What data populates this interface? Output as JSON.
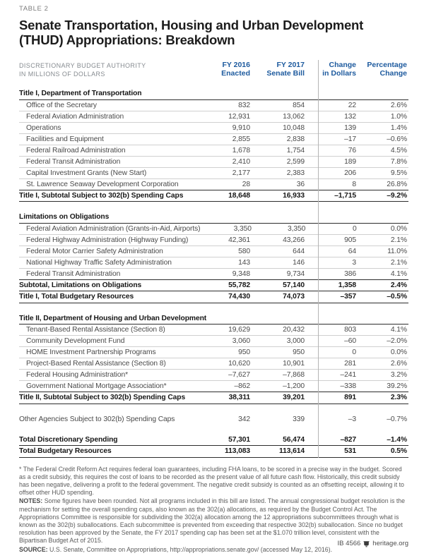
{
  "page": {
    "table_label": "TABLE 2",
    "title": "Senate Transportation, Housing and Urban Development (THUD) Appropriations: Breakdown"
  },
  "colors": {
    "header_blue": "#1d5a9e",
    "dark_rule": "#2d2d2d",
    "light_rule": "#d0d0d0",
    "footnote_gray": "#5b5b5b"
  },
  "table": {
    "axis_label_line1": "DISCRETIONARY BUDGET AUTHORITY",
    "axis_label_line2": "IN MILLIONS OF DOLLARS",
    "columns": [
      {
        "line1": "FY 2016",
        "line2": "Enacted"
      },
      {
        "line1": "FY 2017",
        "line2": "Senate Bill"
      },
      {
        "line1": "Change",
        "line2": "in Dollars"
      },
      {
        "line1": "Percentage",
        "line2": "Change"
      }
    ],
    "rows": [
      {
        "type": "section",
        "label": "Title I, Department of Transportation"
      },
      {
        "type": "data",
        "label": "Office of the Secretary",
        "v": [
          "832",
          "854",
          "22",
          "2.6%"
        ]
      },
      {
        "type": "data",
        "label": "Federal Aviation Administration",
        "v": [
          "12,931",
          "13,062",
          "132",
          "1.0%"
        ]
      },
      {
        "type": "data",
        "label": "Operations",
        "v": [
          "9,910",
          "10,048",
          "139",
          "1.4%"
        ]
      },
      {
        "type": "data",
        "label": "Facilities and Equipment",
        "v": [
          "2,855",
          "2,838",
          "–17",
          "–0.6%"
        ]
      },
      {
        "type": "data",
        "label": "Federal Railroad Administration",
        "v": [
          "1,678",
          "1,754",
          "76",
          "4.5%"
        ]
      },
      {
        "type": "data",
        "label": "Federal Transit Administration",
        "v": [
          "2,410",
          "2,599",
          "189",
          "7.8%"
        ]
      },
      {
        "type": "data",
        "label": "Capital Investment Grants (New Start)",
        "v": [
          "2,177",
          "2,383",
          "206",
          "9.5%"
        ]
      },
      {
        "type": "data",
        "label": "St. Lawrence Seaway Development Corporation",
        "v": [
          "28",
          "36",
          "8",
          "26.8%"
        ]
      },
      {
        "type": "subtotal",
        "label": "Title I, Subtotal Subject to 302(b) Spending Caps",
        "v": [
          "18,648",
          "16,933",
          "–1,715",
          "–9.2%"
        ]
      },
      {
        "type": "gap"
      },
      {
        "type": "section",
        "label": "Limitations on Obligations"
      },
      {
        "type": "data",
        "label": "Federal Aviation Administration (Grants-in-Aid, Airports)",
        "v": [
          "3,350",
          "3,350",
          "0",
          "0.0%"
        ]
      },
      {
        "type": "data",
        "label": "Federal Highway Administration (Highway Funding)",
        "v": [
          "42,361",
          "43,266",
          "905",
          "2.1%"
        ]
      },
      {
        "type": "data",
        "label": "Federal Motor Carrier Safety Administration",
        "v": [
          "580",
          "644",
          "64",
          "11.0%"
        ]
      },
      {
        "type": "data",
        "label": "National Highway Traffic Safety Administration",
        "v": [
          "143",
          "146",
          "3",
          "2.1%"
        ]
      },
      {
        "type": "data",
        "label": "Federal Transit Administration",
        "v": [
          "9,348",
          "9,734",
          "386",
          "4.1%"
        ]
      },
      {
        "type": "subtotal",
        "label": "Subtotal, Limitations on Obligations",
        "v": [
          "55,782",
          "57,140",
          "1,358",
          "2.4%"
        ]
      },
      {
        "type": "subtotal",
        "label": "Title I, Total Budgetary Resources",
        "v": [
          "74,430",
          "74,073",
          "–357",
          "–0.5%"
        ]
      },
      {
        "type": "gap"
      },
      {
        "type": "section",
        "label": "Title II, Department of Housing and Urban Development"
      },
      {
        "type": "data",
        "label": "Tenant-Based Rental Assistance (Section 8)",
        "v": [
          "19,629",
          "20,432",
          "803",
          "4.1%"
        ]
      },
      {
        "type": "data",
        "label": "Community Development Fund",
        "v": [
          "3,060",
          "3,000",
          "–60",
          "–2.0%"
        ]
      },
      {
        "type": "data",
        "label": "HOME Investment Partnership Programs",
        "v": [
          "950",
          "950",
          "0",
          "0.0%"
        ]
      },
      {
        "type": "data",
        "label": "Project-Based Rental Assistance (Section 8)",
        "v": [
          "10,620",
          "10,901",
          "281",
          "2.6%"
        ]
      },
      {
        "type": "data",
        "label": "Federal Housing Administration*",
        "v": [
          "–7,627",
          "–7,868",
          "–241",
          "3.2%"
        ]
      },
      {
        "type": "data",
        "label": "Government National Mortgage Association*",
        "v": [
          "–862",
          "–1,200",
          "–338",
          "39.2%"
        ]
      },
      {
        "type": "subtotal",
        "label": "Title II, Subtotal Subject to 302(b) Spending Caps",
        "v": [
          "38,311",
          "39,201",
          "891",
          "2.3%"
        ]
      },
      {
        "type": "gap"
      },
      {
        "type": "plain",
        "label": "Other Agencies Subject to 302(b) Spending Caps",
        "v": [
          "342",
          "339",
          "–3",
          "–0.7%"
        ]
      },
      {
        "type": "gap"
      },
      {
        "type": "total",
        "label": "Total Discretionary Spending",
        "v": [
          "57,301",
          "56,474",
          "–827",
          "–1.4%"
        ]
      },
      {
        "type": "total",
        "label": "Total Budgetary Resources",
        "v": [
          "113,083",
          "113,614",
          "531",
          "0.5%"
        ]
      }
    ]
  },
  "footnotes": {
    "asterisk": "* The Federal Credit Reform Act requires federal loan guarantees, including FHA loans, to be scored in a precise way in the budget. Scored as a credit subsidy, this requires the cost of loans to be recorded as the present value of all future cash flow. Historically, this credit subsidy has been negative, delivering a profit to the federal government. The negative credit subsidy is counted as an offsetting receipt, allowing it to offset other HUD spending.",
    "notes_label": "NOTES:",
    "notes": "Some figures have been rounded. Not all programs included in this bill are listed. The annual congressional budget resolution is the mechanism for setting the overall spending caps, also known as the 302(a) allocations, as required by the Budget Control Act. The Appropriations Committee is responsible for subdividing the 302(a) allocation among the 12 appropriations subcommittees through what is known as the 302(b) suballocations. Each subcommittee is prevented from exceeding that respective 302(b) suballocation. Since no budget resolution has been approved by the Senate, the FY 2017 spending cap has been set at the $1.070 trillion level, consistent with the Bipartisan Budget Act of 2015.",
    "source_label": "SOURCE:",
    "source": "U.S. Senate, Committee on Appropriations, http://appropriations.senate.gov/ (accessed May 12, 2016)."
  },
  "footer": {
    "id": "IB 4566",
    "site": "heritage.org"
  }
}
